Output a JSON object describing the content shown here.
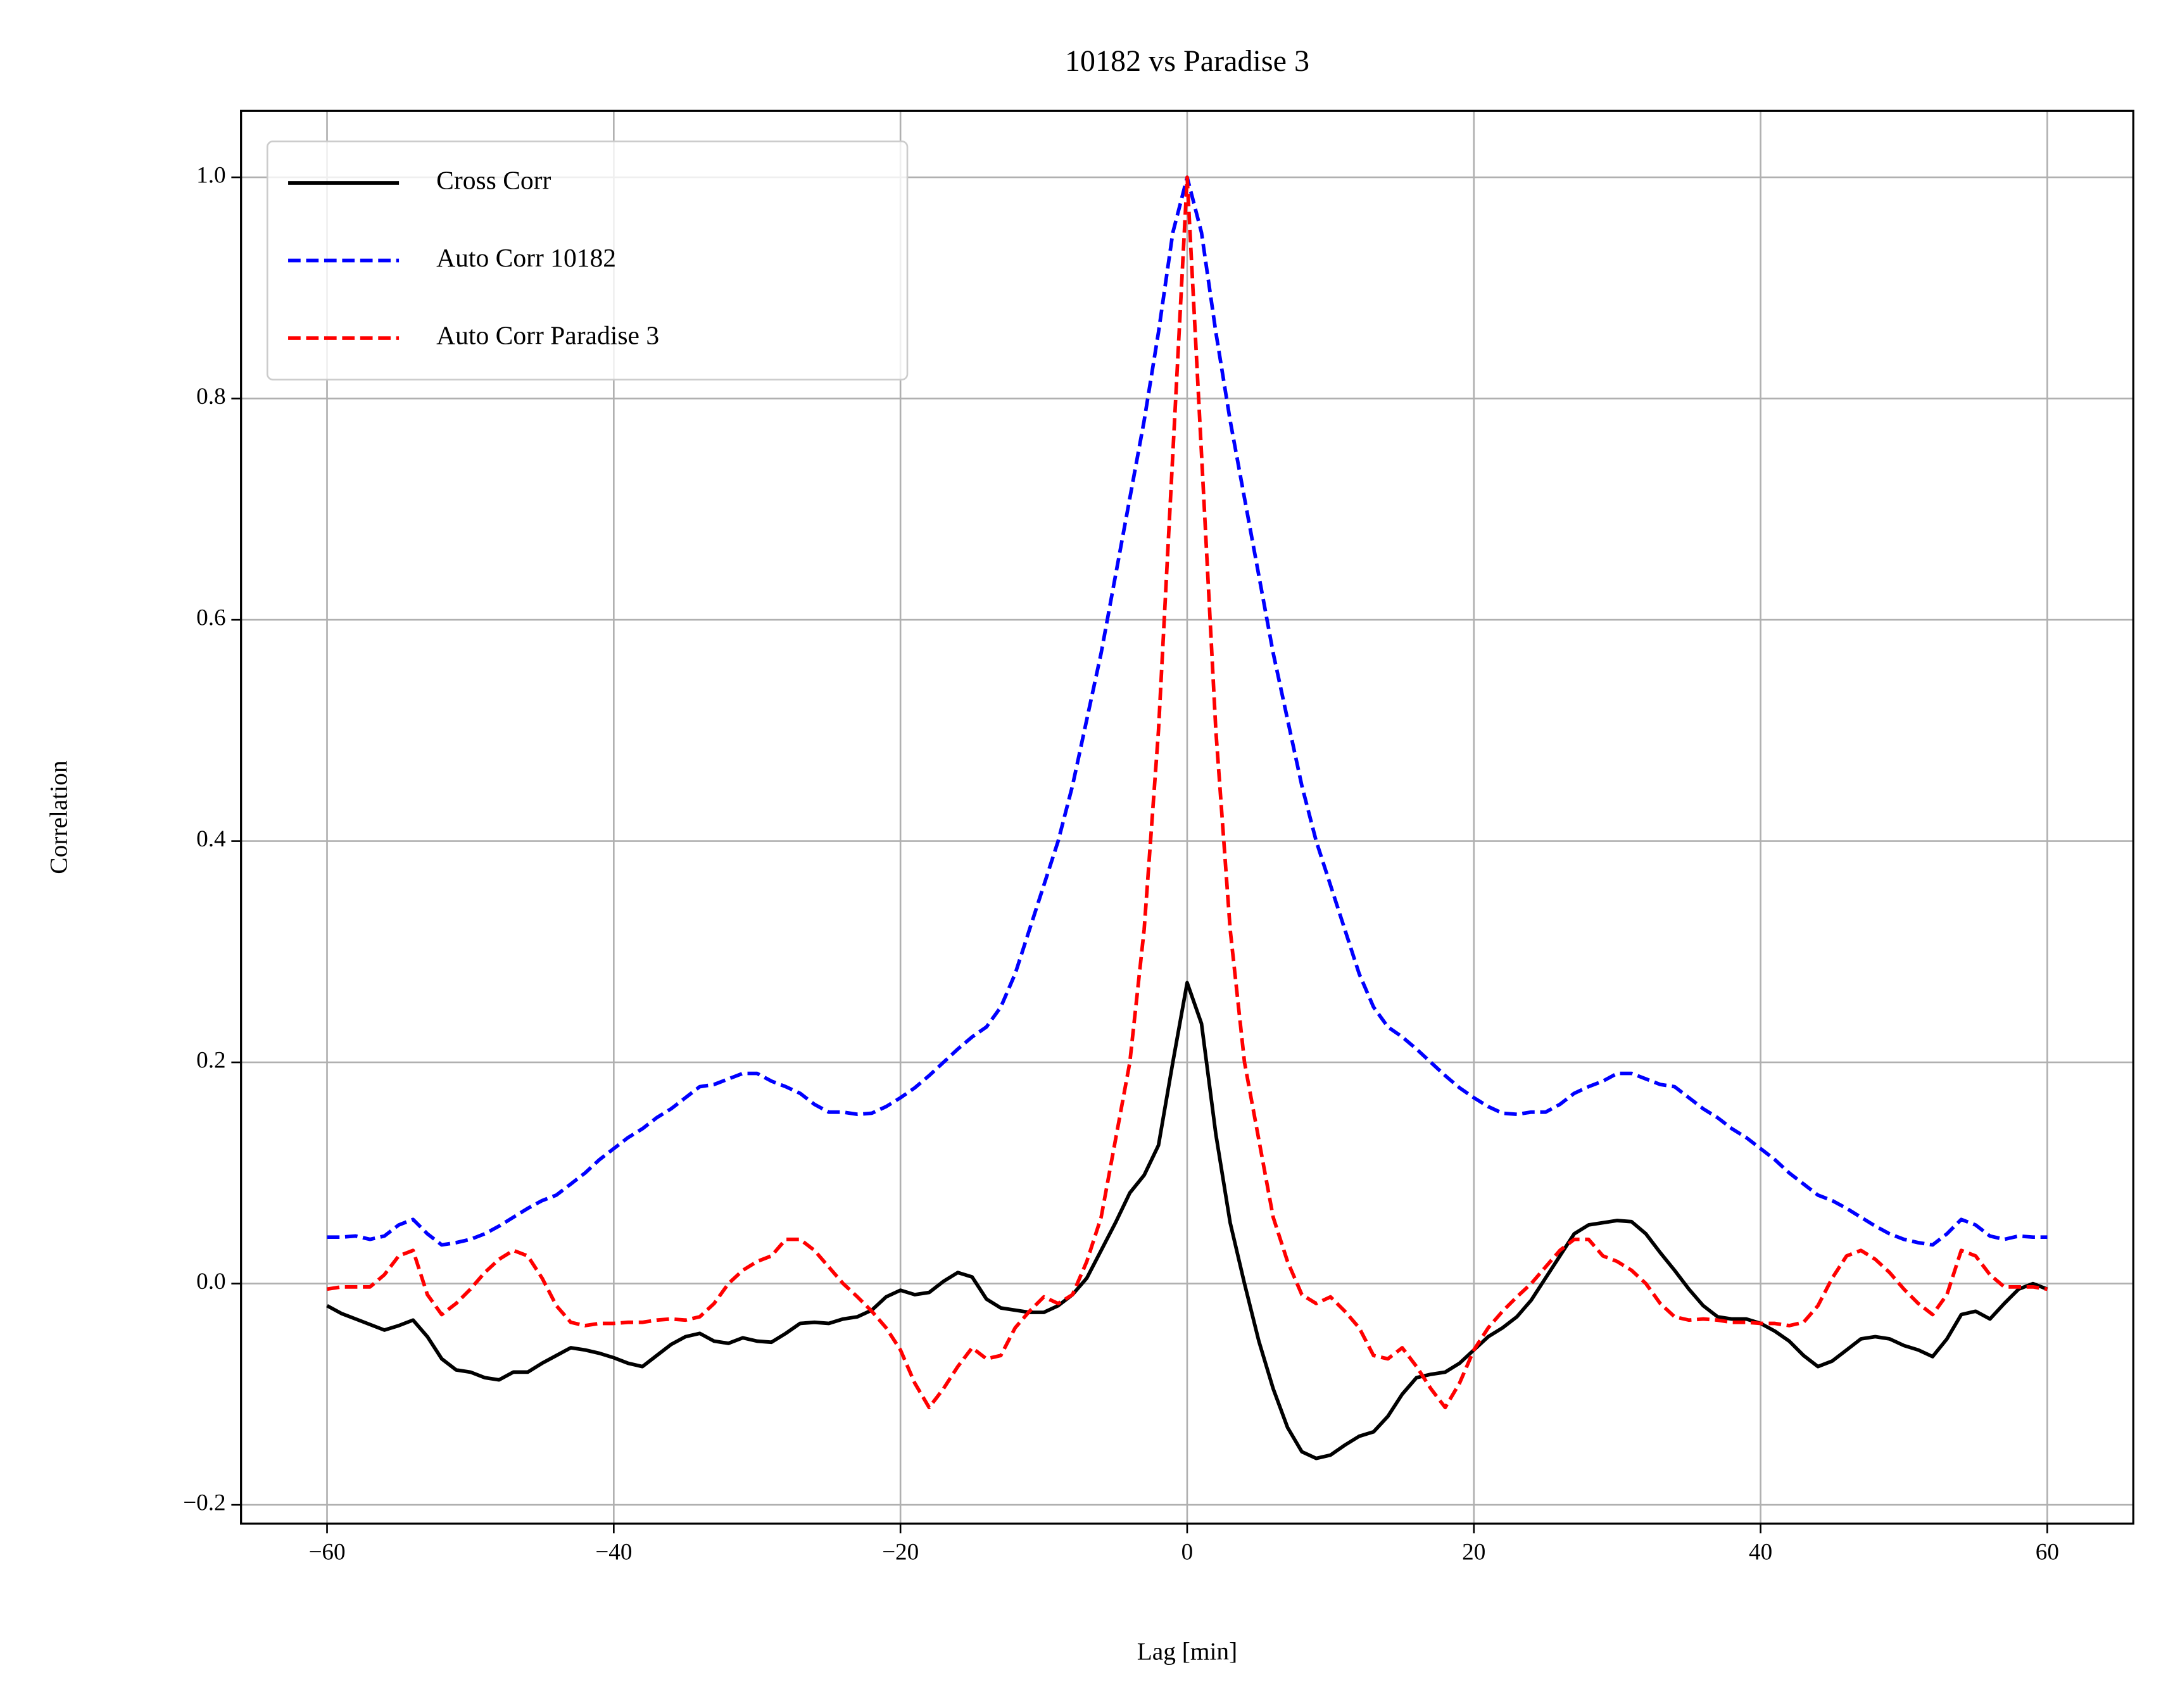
{
  "chart_data": {
    "type": "line",
    "title": "10182 vs Paradise 3",
    "xlabel": "Lag [min]",
    "ylabel": "Correlation",
    "x": [
      -60,
      -59,
      -58,
      -57,
      -56,
      -55,
      -54,
      -53,
      -52,
      -51,
      -50,
      -49,
      -48,
      -47,
      -46,
      -45,
      -44,
      -43,
      -42,
      -41,
      -40,
      -39,
      -38,
      -37,
      -36,
      -35,
      -34,
      -33,
      -32,
      -31,
      -30,
      -29,
      -28,
      -27,
      -26,
      -25,
      -24,
      -23,
      -22,
      -21,
      -20,
      -19,
      -18,
      -17,
      -16,
      -15,
      -14,
      -13,
      -12,
      -11,
      -10,
      -9,
      -8,
      -7,
      -6,
      -5,
      -4,
      -3,
      -2,
      -1,
      0,
      1,
      2,
      3,
      4,
      5,
      6,
      7,
      8,
      9,
      10,
      11,
      12,
      13,
      14,
      15,
      16,
      17,
      18,
      19,
      20,
      21,
      22,
      23,
      24,
      25,
      26,
      27,
      28,
      29,
      30,
      31,
      32,
      33,
      34,
      35,
      36,
      37,
      38,
      39,
      40,
      41,
      42,
      43,
      44,
      45,
      46,
      47,
      48,
      49,
      50,
      51,
      52,
      53,
      54,
      55,
      56,
      57,
      58,
      59,
      60
    ],
    "series": [
      {
        "name": "Cross Corr",
        "color": "#000000",
        "dash": false,
        "values": [
          -0.02,
          -0.027,
          -0.032,
          -0.037,
          -0.042,
          -0.038,
          -0.033,
          -0.048,
          -0.068,
          -0.078,
          -0.08,
          -0.085,
          -0.087,
          -0.08,
          -0.08,
          -0.072,
          -0.065,
          -0.058,
          -0.06,
          -0.063,
          -0.067,
          -0.072,
          -0.075,
          -0.065,
          -0.055,
          -0.048,
          -0.045,
          -0.052,
          -0.054,
          -0.049,
          -0.052,
          -0.053,
          -0.045,
          -0.036,
          -0.035,
          -0.036,
          -0.032,
          -0.03,
          -0.024,
          -0.012,
          -0.006,
          -0.01,
          -0.008,
          0.002,
          0.01,
          0.006,
          -0.014,
          -0.022,
          -0.024,
          -0.026,
          -0.026,
          -0.02,
          -0.01,
          0.005,
          0.03,
          0.055,
          0.082,
          0.098,
          0.125,
          0.2,
          0.272,
          0.235,
          0.135,
          0.055,
          0.0,
          -0.052,
          -0.095,
          -0.13,
          -0.152,
          -0.158,
          -0.155,
          -0.146,
          -0.138,
          -0.134,
          -0.12,
          -0.1,
          -0.085,
          -0.082,
          -0.08,
          -0.072,
          -0.06,
          -0.048,
          -0.04,
          -0.03,
          -0.015,
          0.005,
          0.025,
          0.045,
          0.053,
          0.055,
          0.057,
          0.056,
          0.045,
          0.028,
          0.012,
          -0.005,
          -0.02,
          -0.03,
          -0.032,
          -0.032,
          -0.036,
          -0.043,
          -0.052,
          -0.065,
          -0.075,
          -0.07,
          -0.06,
          -0.05,
          -0.048,
          -0.05,
          -0.056,
          -0.06,
          -0.066,
          -0.05,
          -0.028,
          -0.025,
          -0.032,
          -0.018,
          -0.005,
          0.0,
          -0.005
        ]
      },
      {
        "name": "Auto Corr 10182",
        "color": "#0000ff",
        "dash": true,
        "values": [
          0.042,
          0.042,
          0.043,
          0.04,
          0.043,
          0.053,
          0.058,
          0.045,
          0.035,
          0.037,
          0.04,
          0.045,
          0.052,
          0.06,
          0.068,
          0.075,
          0.08,
          0.09,
          0.1,
          0.112,
          0.122,
          0.132,
          0.14,
          0.15,
          0.158,
          0.168,
          0.178,
          0.18,
          0.185,
          0.19,
          0.19,
          0.183,
          0.178,
          0.172,
          0.162,
          0.155,
          0.155,
          0.153,
          0.154,
          0.16,
          0.168,
          0.177,
          0.188,
          0.2,
          0.212,
          0.223,
          0.232,
          0.25,
          0.28,
          0.32,
          0.36,
          0.4,
          0.45,
          0.51,
          0.57,
          0.64,
          0.71,
          0.78,
          0.86,
          0.95,
          1.0,
          0.95,
          0.86,
          0.78,
          0.71,
          0.64,
          0.57,
          0.51,
          0.45,
          0.4,
          0.36,
          0.32,
          0.28,
          0.25,
          0.232,
          0.223,
          0.212,
          0.2,
          0.188,
          0.177,
          0.168,
          0.16,
          0.154,
          0.153,
          0.155,
          0.155,
          0.162,
          0.172,
          0.178,
          0.183,
          0.19,
          0.19,
          0.185,
          0.18,
          0.178,
          0.168,
          0.158,
          0.15,
          0.14,
          0.132,
          0.122,
          0.112,
          0.1,
          0.09,
          0.08,
          0.075,
          0.068,
          0.06,
          0.052,
          0.045,
          0.04,
          0.037,
          0.035,
          0.045,
          0.058,
          0.053,
          0.043,
          0.04,
          0.043,
          0.042,
          0.042
        ]
      },
      {
        "name": "Auto Corr Paradise 3",
        "color": "#ff0000",
        "dash": true,
        "values": [
          -0.005,
          -0.003,
          -0.003,
          -0.003,
          0.008,
          0.025,
          0.03,
          -0.01,
          -0.028,
          -0.018,
          -0.005,
          0.01,
          0.022,
          0.03,
          0.025,
          0.005,
          -0.02,
          -0.035,
          -0.038,
          -0.036,
          -0.036,
          -0.035,
          -0.035,
          -0.033,
          -0.032,
          -0.033,
          -0.03,
          -0.018,
          0.0,
          0.012,
          0.02,
          0.025,
          0.04,
          0.04,
          0.03,
          0.015,
          0.0,
          -0.012,
          -0.025,
          -0.04,
          -0.06,
          -0.09,
          -0.112,
          -0.095,
          -0.075,
          -0.058,
          -0.068,
          -0.065,
          -0.04,
          -0.025,
          -0.012,
          -0.018,
          -0.01,
          0.02,
          0.06,
          0.13,
          0.2,
          0.32,
          0.5,
          0.75,
          1.0,
          0.75,
          0.5,
          0.32,
          0.2,
          0.13,
          0.06,
          0.02,
          -0.01,
          -0.018,
          -0.012,
          -0.025,
          -0.04,
          -0.065,
          -0.068,
          -0.058,
          -0.075,
          -0.095,
          -0.112,
          -0.09,
          -0.06,
          -0.04,
          -0.025,
          -0.012,
          0.0,
          0.015,
          0.03,
          0.04,
          0.04,
          0.025,
          0.02,
          0.012,
          0.0,
          -0.018,
          -0.03,
          -0.033,
          -0.032,
          -0.033,
          -0.035,
          -0.035,
          -0.036,
          -0.036,
          -0.038,
          -0.035,
          -0.02,
          0.005,
          0.025,
          0.03,
          0.022,
          0.01,
          -0.005,
          -0.018,
          -0.028,
          -0.01,
          0.03,
          0.025,
          0.008,
          -0.003,
          -0.003,
          -0.003,
          -0.005
        ]
      }
    ],
    "xlim": [
      -66,
      66
    ],
    "ylim": [
      -0.217,
      1.06
    ],
    "xticks": [
      {
        "value": -60,
        "label": "−60"
      },
      {
        "value": -40,
        "label": "−40"
      },
      {
        "value": -20,
        "label": "−20"
      },
      0,
      20,
      40,
      60
    ],
    "yticks": [
      {
        "value": -0.2,
        "label": "−0.2"
      },
      {
        "value": 0,
        "label": "0.0"
      },
      0.2,
      0.4,
      0.6,
      0.8,
      {
        "value": 1,
        "label": "1.0"
      }
    ],
    "grid": true,
    "legend": "upper left"
  }
}
